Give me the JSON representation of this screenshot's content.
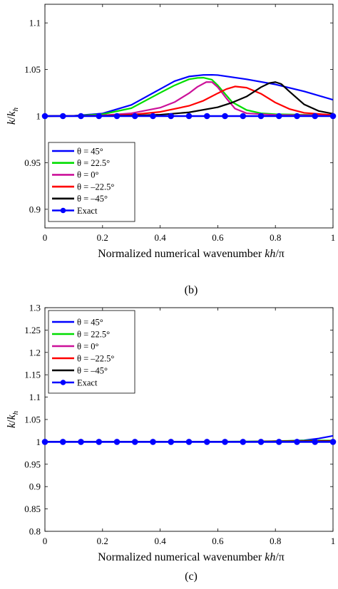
{
  "chart_data": [
    {
      "type": "line",
      "panel_label": "(b)",
      "xlabel_text": "Normalized numerical wavenumber ",
      "xlabel_italic": "kh",
      "xlabel_suffix": "/π",
      "ylabel_k": "k",
      "ylabel_slash": "/",
      "ylabel_kh": "k",
      "ylabel_h": "h",
      "xlim": [
        0,
        1
      ],
      "ylim": [
        0.88,
        1.12
      ],
      "xticks": [
        "0",
        "0.2",
        "0.4",
        "0.6",
        "0.8",
        "1"
      ],
      "xtick_values": [
        0,
        0.2,
        0.4,
        0.6,
        0.8,
        1
      ],
      "yticks": [
        "0.9",
        "0.95",
        "1",
        "1.05",
        "1.1"
      ],
      "ytick_values": [
        0.9,
        0.95,
        1.0,
        1.05,
        1.1
      ],
      "grid": false,
      "legend_position": "bottom-left",
      "series": [
        {
          "name": "θ = 45°",
          "color": "#0000ff",
          "x": [
            0,
            0.1,
            0.2,
            0.3,
            0.4,
            0.45,
            0.5,
            0.55,
            0.58,
            0.6,
            0.7,
            0.8,
            0.9,
            1.0
          ],
          "y": [
            1.0,
            1.0003,
            1.0028,
            1.012,
            1.029,
            1.0375,
            1.0425,
            1.0442,
            1.0443,
            1.044,
            1.0395,
            1.034,
            1.0265,
            1.0175
          ]
        },
        {
          "name": "θ = 22.5°",
          "color": "#00dd00",
          "x": [
            0,
            0.1,
            0.2,
            0.3,
            0.4,
            0.45,
            0.5,
            0.53,
            0.55,
            0.58,
            0.6,
            0.65,
            0.7,
            0.75,
            0.8,
            0.9,
            1.0
          ],
          "y": [
            1.0,
            1.0002,
            1.002,
            1.0085,
            1.025,
            1.033,
            1.0395,
            1.041,
            1.0412,
            1.039,
            1.033,
            1.015,
            1.0065,
            1.003,
            1.002,
            1.0015,
            1.0012
          ]
        },
        {
          "name": "θ = 0°",
          "color": "#cc1199",
          "x": [
            0,
            0.1,
            0.2,
            0.3,
            0.4,
            0.45,
            0.5,
            0.53,
            0.56,
            0.58,
            0.6,
            0.63,
            0.66,
            0.7,
            0.8,
            0.9,
            1.0
          ],
          "y": [
            1.0,
            1.0001,
            1.0008,
            1.003,
            1.009,
            1.015,
            1.0245,
            1.0315,
            1.0365,
            1.0365,
            1.031,
            1.019,
            1.008,
            1.003,
            1.0012,
            1.001,
            1.001
          ]
        },
        {
          "name": "θ = –22.5°",
          "color": "#ff0000",
          "x": [
            0,
            0.2,
            0.3,
            0.4,
            0.5,
            0.55,
            0.6,
            0.63,
            0.66,
            0.7,
            0.75,
            0.8,
            0.85,
            0.9,
            1.0
          ],
          "y": [
            1.0,
            1.0003,
            1.0015,
            1.0045,
            1.011,
            1.0165,
            1.0245,
            1.029,
            1.0318,
            1.0305,
            1.024,
            1.0145,
            1.0075,
            1.0035,
            1.0012
          ]
        },
        {
          "name": "θ = –45°",
          "color": "#000000",
          "x": [
            0,
            0.2,
            0.3,
            0.4,
            0.5,
            0.6,
            0.65,
            0.7,
            0.75,
            0.78,
            0.8,
            0.82,
            0.85,
            0.9,
            0.95,
            1.0
          ],
          "y": [
            1.0,
            1.0001,
            1.0005,
            1.0015,
            1.004,
            1.0095,
            1.0145,
            1.021,
            1.031,
            1.0355,
            1.0365,
            1.0345,
            1.026,
            1.0125,
            1.0055,
            1.0025
          ]
        },
        {
          "name": "Exact",
          "color": "#0000ff",
          "markers": true,
          "x": [
            0,
            0.0625,
            0.125,
            0.1875,
            0.25,
            0.3125,
            0.375,
            0.4375,
            0.5,
            0.5625,
            0.625,
            0.6875,
            0.75,
            0.8125,
            0.875,
            0.9375,
            1.0
          ],
          "y": [
            1,
            1,
            1,
            1,
            1,
            1,
            1,
            1,
            1,
            1,
            1,
            1,
            1,
            1,
            1,
            1,
            1
          ]
        }
      ]
    },
    {
      "type": "line",
      "panel_label": "(c)",
      "xlabel_text": "Normalized numerical wavenumber ",
      "xlabel_italic": "kh",
      "xlabel_suffix": "/π",
      "ylabel_k": "k",
      "ylabel_slash": "/",
      "ylabel_kh": "k",
      "ylabel_h": "h",
      "xlim": [
        0,
        1
      ],
      "ylim": [
        0.8,
        1.3
      ],
      "xticks": [
        "0",
        "0.2",
        "0.4",
        "0.6",
        "0.8",
        "1"
      ],
      "xtick_values": [
        0,
        0.2,
        0.4,
        0.6,
        0.8,
        1
      ],
      "yticks": [
        "0.8",
        "0.85",
        "0.9",
        "0.95",
        "1",
        "1.05",
        "1.1",
        "1.15",
        "1.2",
        "1.25",
        "1.3"
      ],
      "ytick_values": [
        0.8,
        0.85,
        0.9,
        0.95,
        1.0,
        1.05,
        1.1,
        1.15,
        1.2,
        1.25,
        1.3
      ],
      "grid": false,
      "legend_position": "top-left",
      "series": [
        {
          "name": "θ = 45°",
          "color": "#0000ff",
          "x": [
            0,
            0.5,
            0.7,
            0.8,
            0.9,
            0.95,
            1.0
          ],
          "y": [
            1.0,
            1.0,
            1.0003,
            1.001,
            1.0035,
            1.0075,
            1.0135
          ]
        },
        {
          "name": "θ = 22.5°",
          "color": "#00dd00",
          "x": [
            0,
            0.5,
            0.7,
            0.8,
            0.9,
            1.0
          ],
          "y": [
            1.0,
            1.0,
            1.0008,
            1.0018,
            1.0028,
            1.003
          ]
        },
        {
          "name": "θ = 0°",
          "color": "#cc1199",
          "x": [
            0,
            0.5,
            0.7,
            0.8,
            0.9,
            1.0
          ],
          "y": [
            1.0,
            1.0,
            1.0003,
            1.0008,
            1.0012,
            1.0015
          ]
        },
        {
          "name": "θ = –22.5°",
          "color": "#ff0000",
          "x": [
            0,
            0.5,
            0.7,
            0.8,
            0.9,
            1.0
          ],
          "y": [
            1.0,
            1.0,
            1.0005,
            1.0012,
            1.0018,
            1.002
          ]
        },
        {
          "name": "θ = –45°",
          "color": "#000000",
          "x": [
            0,
            0.5,
            0.7,
            0.8,
            0.9,
            1.0
          ],
          "y": [
            1.0,
            1.0,
            1.0002,
            1.0006,
            1.001,
            1.0012
          ]
        },
        {
          "name": "Exact",
          "color": "#0000ff",
          "markers": true,
          "x": [
            0,
            0.0625,
            0.125,
            0.1875,
            0.25,
            0.3125,
            0.375,
            0.4375,
            0.5,
            0.5625,
            0.625,
            0.6875,
            0.75,
            0.8125,
            0.875,
            0.9375,
            1.0
          ],
          "y": [
            1,
            1,
            1,
            1,
            1,
            1,
            1,
            1,
            1,
            1,
            1,
            1,
            1,
            1,
            1,
            1,
            1
          ]
        }
      ]
    }
  ]
}
